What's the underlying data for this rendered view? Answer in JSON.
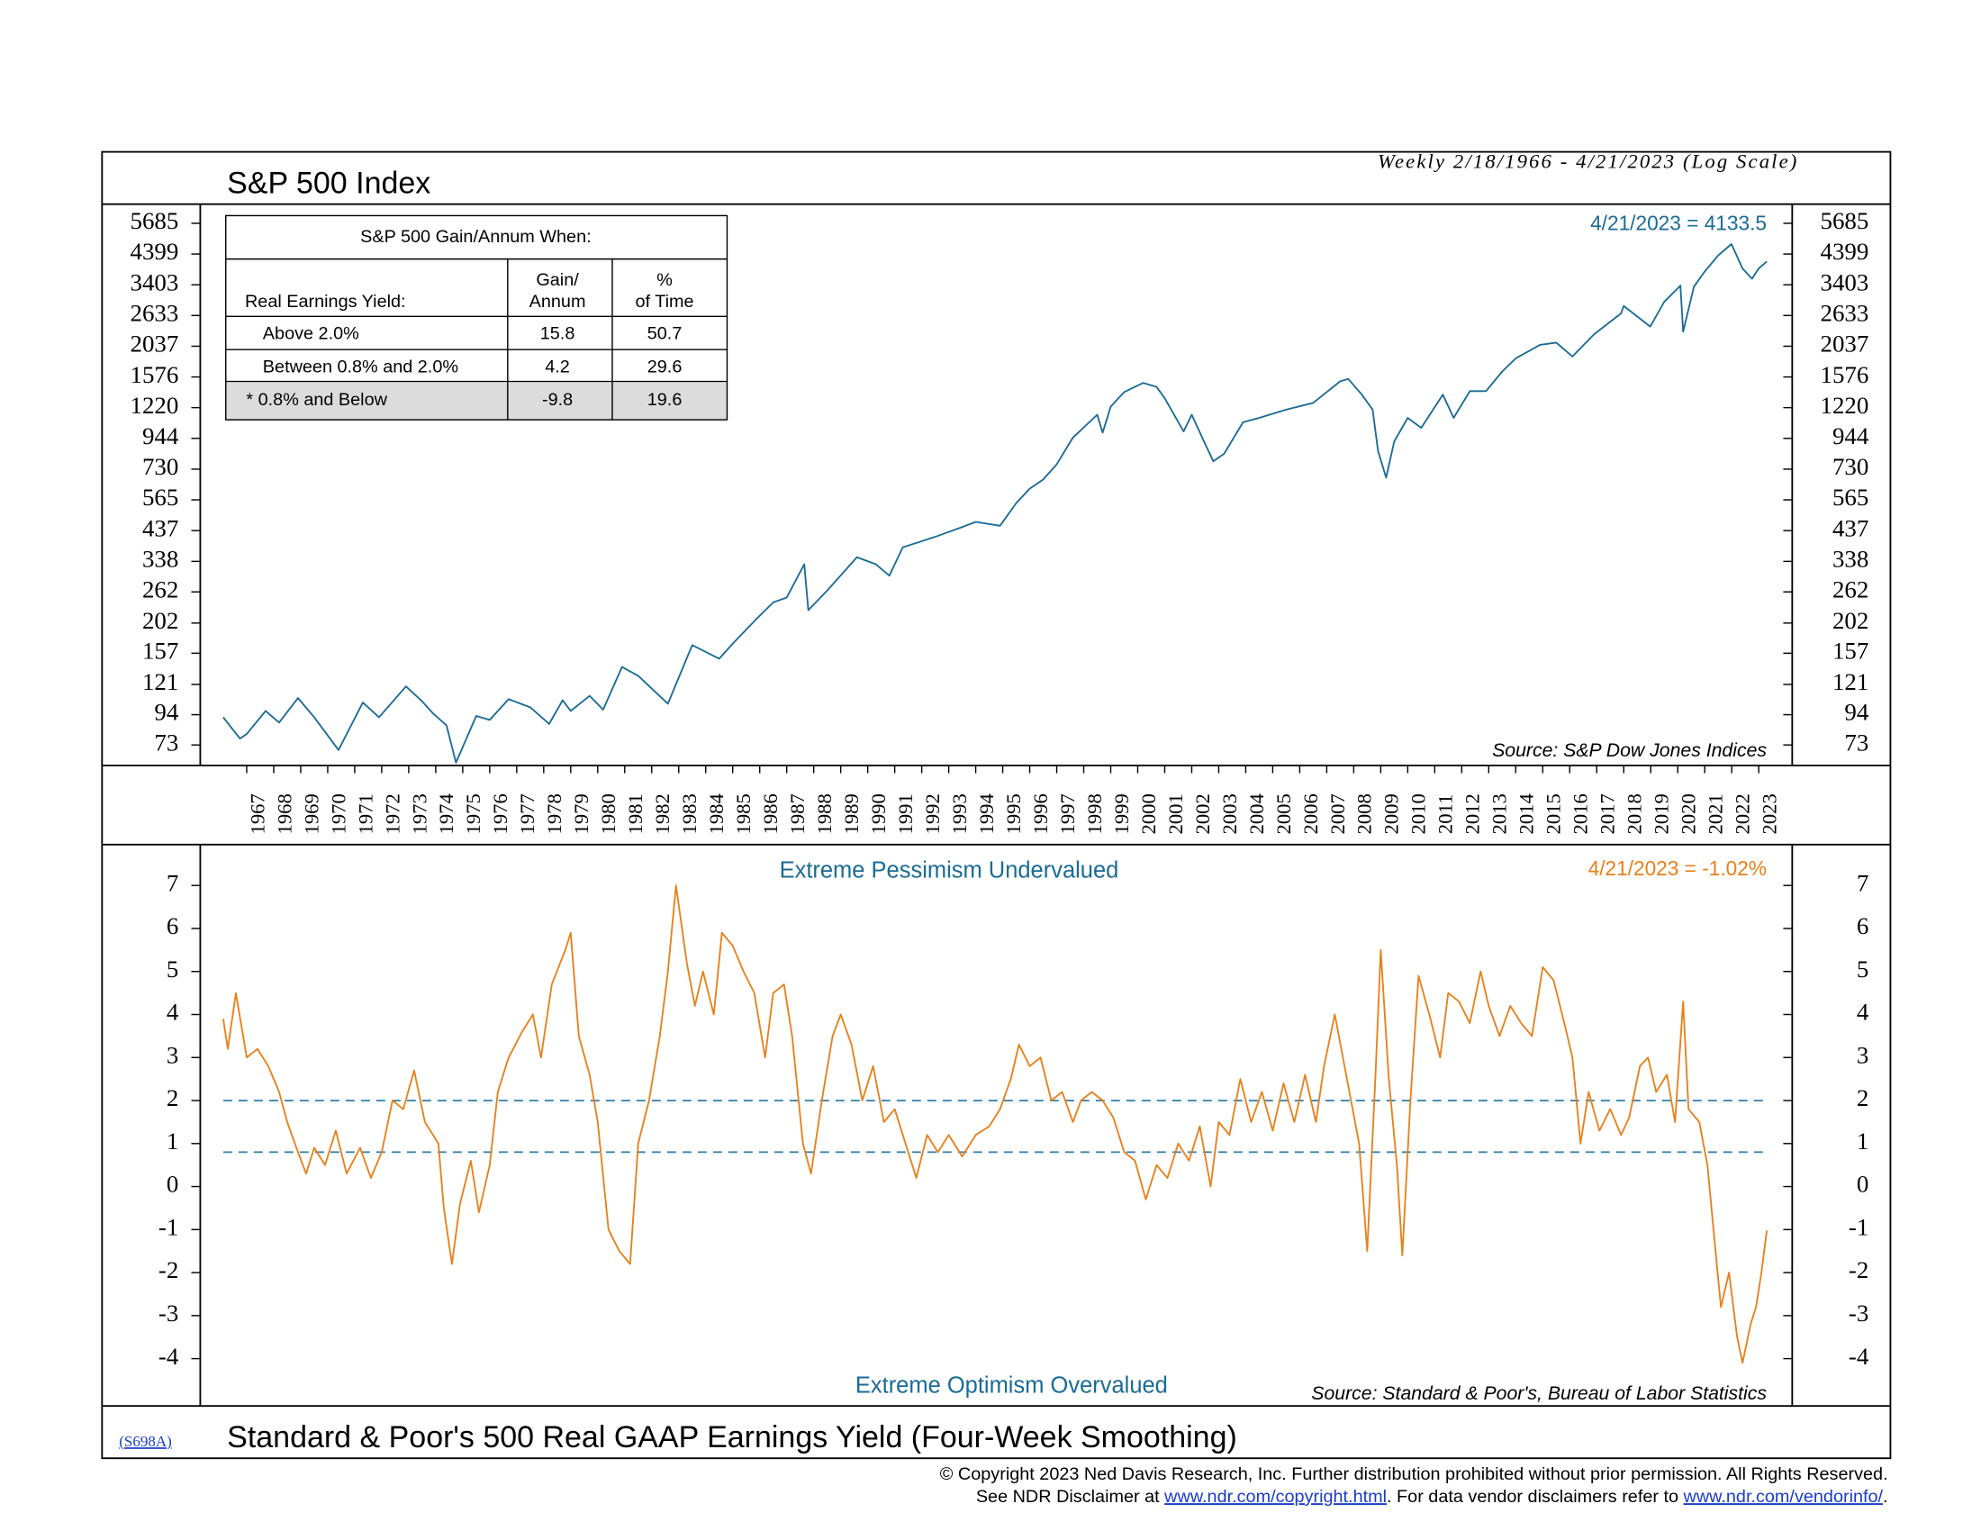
{
  "chart_data": [
    {
      "type": "line",
      "title": "S&P 500 Index",
      "subtitle": "Weekly 2/18/1966 - 4/21/2023 (Log Scale)",
      "color": "#1a6b96",
      "yscale": "log",
      "xlim": [
        1965.28,
        2024.24
      ],
      "ylim": [
        61.5,
        6670
      ],
      "yticks": [
        73,
        94,
        121,
        157,
        202,
        262,
        338,
        437,
        565,
        730,
        944,
        1220,
        1576,
        2037,
        2633,
        3403,
        4399,
        5685
      ],
      "xticks": [
        1967,
        1968,
        1969,
        1970,
        1971,
        1972,
        1973,
        1974,
        1975,
        1976,
        1977,
        1978,
        1979,
        1980,
        1981,
        1982,
        1983,
        1984,
        1985,
        1986,
        1987,
        1988,
        1989,
        1990,
        1991,
        1992,
        1993,
        1994,
        1995,
        1996,
        1997,
        1998,
        1999,
        2000,
        2001,
        2002,
        2003,
        2004,
        2005,
        2006,
        2007,
        2008,
        2009,
        2010,
        2011,
        2012,
        2013,
        2014,
        2015,
        2016,
        2017,
        2018,
        2019,
        2020,
        2021,
        2022,
        2023
      ],
      "x": [
        1966.13,
        1966.75,
        1967.0,
        1967.7,
        1968.2,
        1968.9,
        1969.5,
        1970.4,
        1971.3,
        1971.9,
        1972.9,
        1973.5,
        1973.9,
        1974.4,
        1974.75,
        1975.5,
        1976.0,
        1976.7,
        1977.5,
        1978.2,
        1978.7,
        1979.0,
        1979.7,
        1980.2,
        1980.9,
        1981.5,
        1982.6,
        1983.5,
        1984.5,
        1985.0,
        1985.9,
        1986.5,
        1987.0,
        1987.65,
        1987.8,
        1988.5,
        1989.6,
        1990.3,
        1990.8,
        1991.3,
        1992.5,
        1993.5,
        1994.0,
        1994.9,
        1995.5,
        1996.0,
        1996.5,
        1997.0,
        1997.6,
        1998.5,
        1998.7,
        1999.0,
        1999.5,
        2000.2,
        2000.7,
        2001.0,
        2001.7,
        2002.0,
        2002.5,
        2002.8,
        2003.2,
        2003.9,
        2004.5,
        2005.5,
        2006.5,
        2007.5,
        2007.8,
        2008.3,
        2008.7,
        2008.9,
        2009.2,
        2009.5,
        2010.0,
        2010.5,
        2011.3,
        2011.7,
        2012.3,
        2012.9,
        2013.5,
        2014.0,
        2014.9,
        2015.5,
        2016.1,
        2016.9,
        2017.9,
        2018.0,
        2018.98,
        2019.5,
        2020.1,
        2020.2,
        2020.6,
        2021.0,
        2021.5,
        2021.99,
        2022.4,
        2022.75,
        2023.0,
        2023.3
      ],
      "values": [
        92,
        77,
        80,
        97,
        88,
        108,
        92,
        70,
        104,
        92,
        119,
        105,
        95,
        86,
        63,
        93,
        90,
        107,
        100,
        87,
        106,
        97,
        110,
        98,
        140,
        130,
        103,
        168,
        150,
        170,
        210,
        240,
        250,
        330,
        225,
        265,
        350,
        330,
        300,
        380,
        415,
        450,
        470,
        455,
        550,
        620,
        670,
        760,
        950,
        1150,
        990,
        1230,
        1390,
        1500,
        1450,
        1320,
        1000,
        1150,
        900,
        780,
        830,
        1080,
        1120,
        1200,
        1270,
        1520,
        1550,
        1360,
        1200,
        850,
        680,
        920,
        1120,
        1030,
        1360,
        1120,
        1400,
        1400,
        1650,
        1840,
        2060,
        2100,
        1870,
        2250,
        2680,
        2850,
        2400,
        2950,
        3380,
        2300,
        3350,
        3800,
        4350,
        4780,
        3900,
        3580,
        3900,
        4133.5
      ],
      "annotations": [
        "4/21/2023 = 4133.5",
        "Source: S&P Dow Jones Indices"
      ],
      "table": {
        "title": "S&P 500 Gain/Annum When:",
        "columns": [
          [
            "Real Earnings Yield:"
          ],
          [
            "Gain/",
            "Annum"
          ],
          [
            "%",
            "of Time"
          ]
        ],
        "rows": [
          [
            "Above 2.0%",
            15.8,
            50.7
          ],
          [
            "Between 0.8% and 2.0%",
            4.2,
            29.6
          ],
          [
            "* 0.8% and Below",
            -9.8,
            19.6
          ]
        ]
      }
    },
    {
      "type": "line",
      "title": "Standard & Poor's 500 Real GAAP Earnings Yield (Four-Week Smoothing)",
      "color": "#e8801a",
      "xlim": [
        1965.28,
        2024.24
      ],
      "ylim": [
        -5.1,
        7.95
      ],
      "yticks": [
        -4,
        -3,
        -2,
        -1,
        0,
        1,
        2,
        3,
        4,
        5,
        6,
        7
      ],
      "reference_lines": [
        2.0,
        0.8
      ],
      "reference_color": "#3a86b0",
      "x": [
        1966.13,
        1966.3,
        1966.6,
        1967.0,
        1967.4,
        1967.8,
        1968.2,
        1968.5,
        1968.9,
        1969.2,
        1969.5,
        1969.9,
        1970.3,
        1970.7,
        1971.2,
        1971.6,
        1972.0,
        1972.4,
        1972.8,
        1973.2,
        1973.6,
        1974.1,
        1974.3,
        1974.6,
        1974.9,
        1975.3,
        1975.6,
        1976.0,
        1976.3,
        1976.7,
        1977.2,
        1977.6,
        1977.9,
        1978.3,
        1978.8,
        1979.0,
        1979.3,
        1979.7,
        1980.0,
        1980.4,
        1980.8,
        1981.2,
        1981.5,
        1981.9,
        1982.3,
        1982.6,
        1982.9,
        1983.3,
        1983.6,
        1983.9,
        1984.3,
        1984.6,
        1985.0,
        1985.4,
        1985.8,
        1986.2,
        1986.5,
        1986.9,
        1987.2,
        1987.6,
        1987.9,
        1988.3,
        1988.7,
        1989.0,
        1989.4,
        1989.8,
        1990.2,
        1990.6,
        1991.0,
        1991.4,
        1991.8,
        1992.2,
        1992.6,
        1993.0,
        1993.5,
        1994.0,
        1994.5,
        1994.9,
        1995.3,
        1995.6,
        1996.0,
        1996.4,
        1996.8,
        1997.2,
        1997.6,
        1997.9,
        1998.3,
        1998.7,
        1999.1,
        1999.5,
        1999.9,
        2000.3,
        2000.7,
        2001.1,
        2001.5,
        2001.9,
        2002.3,
        2002.7,
        2003.0,
        2003.4,
        2003.8,
        2004.2,
        2004.6,
        2005.0,
        2005.4,
        2005.8,
        2006.2,
        2006.6,
        2006.9,
        2007.3,
        2007.6,
        2007.9,
        2008.2,
        2008.5,
        2008.8,
        2009.0,
        2009.3,
        2009.6,
        2009.8,
        2010.1,
        2010.4,
        2010.8,
        2011.2,
        2011.5,
        2011.9,
        2012.3,
        2012.7,
        2013.0,
        2013.4,
        2013.8,
        2014.2,
        2014.6,
        2015.0,
        2015.4,
        2015.8,
        2016.1,
        2016.4,
        2016.7,
        2017.1,
        2017.5,
        2017.9,
        2018.2,
        2018.6,
        2018.9,
        2019.2,
        2019.6,
        2019.9,
        2020.2,
        2020.4,
        2020.8,
        2021.1,
        2021.4,
        2021.6,
        2021.9,
        2022.2,
        2022.4,
        2022.7,
        2022.9,
        2023.1,
        2023.3
      ],
      "values": [
        3.9,
        3.2,
        4.5,
        3.0,
        3.2,
        2.8,
        2.2,
        1.5,
        0.8,
        0.3,
        0.9,
        0.5,
        1.3,
        0.3,
        0.9,
        0.2,
        0.8,
        2.0,
        1.8,
        2.7,
        1.5,
        1.0,
        -0.5,
        -1.8,
        -0.4,
        0.6,
        -0.6,
        0.5,
        2.2,
        3.0,
        3.6,
        4.0,
        3.0,
        4.7,
        5.5,
        5.9,
        3.5,
        2.6,
        1.5,
        -1.0,
        -1.5,
        -1.8,
        1.0,
        2.0,
        3.5,
        5.0,
        7.0,
        5.2,
        4.2,
        5.0,
        4.0,
        5.9,
        5.6,
        5.0,
        4.5,
        3.0,
        4.5,
        4.7,
        3.5,
        1.0,
        0.3,
        2.0,
        3.5,
        4.0,
        3.3,
        2.0,
        2.8,
        1.5,
        1.8,
        1.0,
        0.2,
        1.2,
        0.8,
        1.2,
        0.7,
        1.2,
        1.4,
        1.8,
        2.5,
        3.3,
        2.8,
        3.0,
        2.0,
        2.2,
        1.5,
        2.0,
        2.2,
        2.0,
        1.6,
        0.8,
        0.6,
        -0.3,
        0.5,
        0.2,
        1.0,
        0.6,
        1.4,
        0.0,
        1.5,
        1.2,
        2.5,
        1.5,
        2.2,
        1.3,
        2.4,
        1.5,
        2.6,
        1.5,
        2.8,
        4.0,
        3.0,
        2.0,
        1.0,
        -1.5,
        2.5,
        5.5,
        2.5,
        0.5,
        -1.6,
        2.0,
        4.9,
        4.0,
        3.0,
        4.5,
        4.3,
        3.8,
        5.0,
        4.2,
        3.5,
        4.2,
        3.8,
        3.5,
        5.1,
        4.8,
        3.8,
        3.0,
        1.0,
        2.2,
        1.3,
        1.8,
        1.2,
        1.6,
        2.8,
        3.0,
        2.2,
        2.6,
        1.5,
        4.3,
        1.8,
        1.5,
        0.5,
        -1.5,
        -2.8,
        -2.0,
        -3.5,
        -4.1,
        -3.2,
        -2.8,
        -2.0,
        -1.02
      ],
      "annotations": [
        "Extreme Pessimism Undervalued",
        "4/21/2023 = -1.02%",
        "Extreme Optimism Overvalued",
        "Source: Standard & Poor's, Bureau of Labor Statistics"
      ]
    }
  ],
  "footer": {
    "code": "(S698A)",
    "copyright": "© Copyright 2023 Ned Davis Research, Inc.  Further distribution prohibited without prior permission.  All Rights Reserved.",
    "disclaimer": [
      "See NDR Disclaimer at ",
      "www.ndr.com/copyright.html",
      ". For data vendor disclaimers refer to ",
      "www.ndr.com/vendorinfo/",
      "."
    ]
  }
}
